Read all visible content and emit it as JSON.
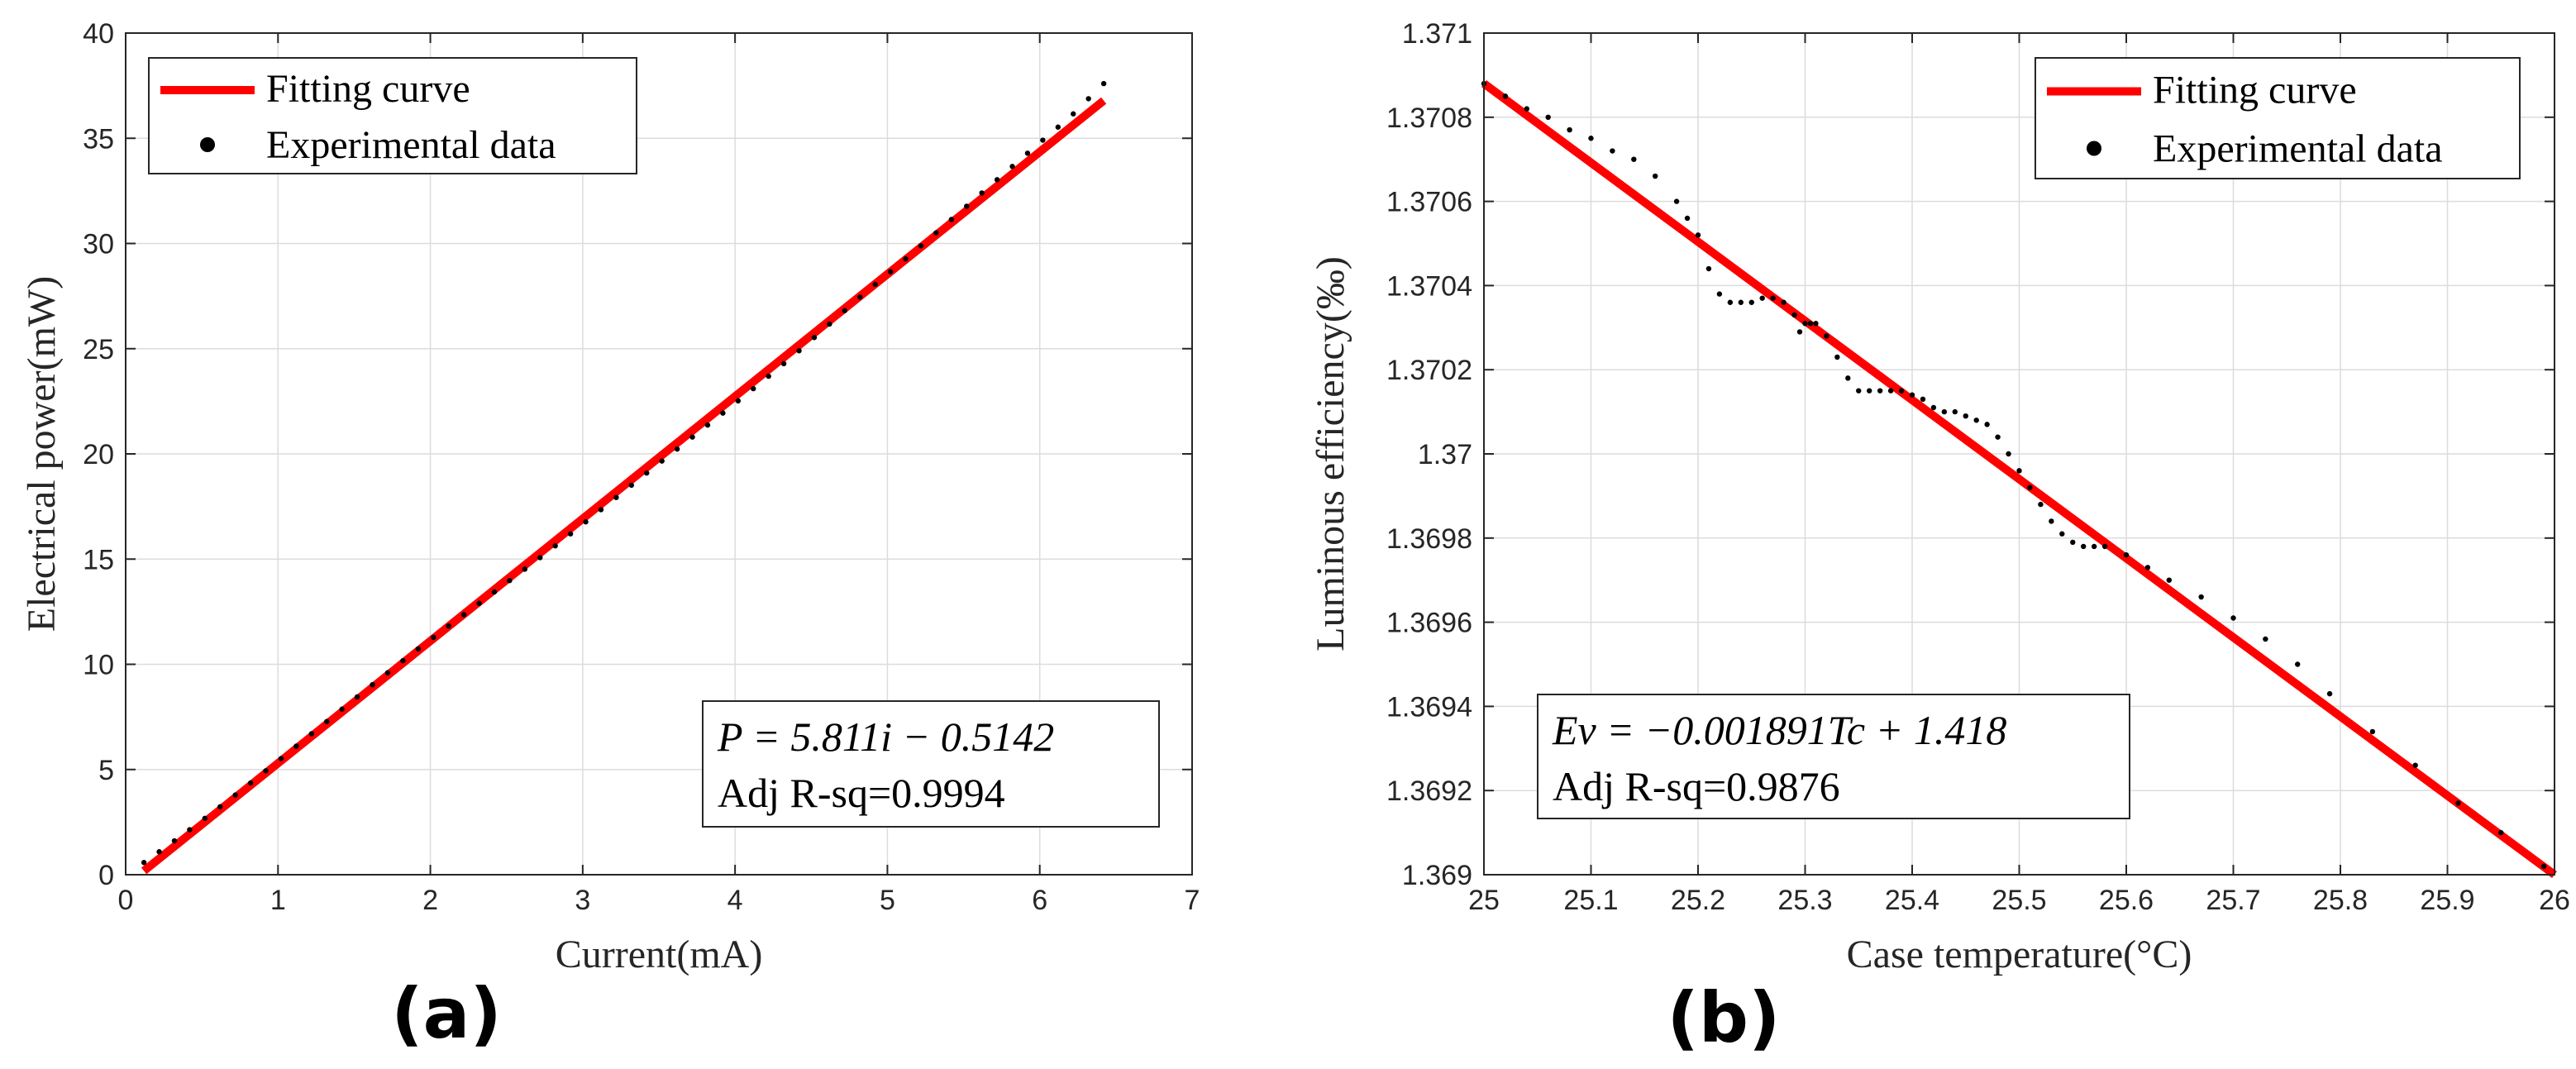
{
  "colors": {
    "fit": "#ff0000",
    "data": "#000000",
    "grid": "#dcdcdc",
    "axis": "#262626",
    "text": "#262626"
  },
  "chart_data": [
    {
      "panel": "(a)",
      "type": "scatter",
      "xlabel": "Current(mA)",
      "ylabel": "Electrical power(mW)",
      "xlim": [
        0,
        7
      ],
      "ylim": [
        0,
        40
      ],
      "xticks": [
        0,
        1,
        2,
        3,
        4,
        5,
        6,
        7
      ],
      "xtick_labels": [
        "0",
        "1",
        "2",
        "3",
        "4",
        "5",
        "6",
        "7"
      ],
      "yticks": [
        0,
        5,
        10,
        15,
        20,
        25,
        30,
        35,
        40
      ],
      "ytick_labels": [
        "0",
        "5",
        "10",
        "15",
        "20",
        "25",
        "30",
        "35",
        "40"
      ],
      "grid": true,
      "legend": {
        "position": "top-left",
        "entries": [
          "Fitting curve",
          "Experimental data"
        ]
      },
      "annotation": {
        "position": "bottom-right",
        "equation": "P = 5.811i − 0.5142",
        "r2": "Adj R-sq=0.9994"
      },
      "fit": {
        "slope": 5.811,
        "intercept": -0.5142,
        "x_range": [
          0.12,
          6.42
        ]
      },
      "series": [
        {
          "name": "Experimental data",
          "x": [
            0.12,
            0.22,
            0.32,
            0.42,
            0.52,
            0.62,
            0.72,
            0.82,
            0.92,
            1.02,
            1.12,
            1.22,
            1.32,
            1.42,
            1.52,
            1.62,
            1.72,
            1.82,
            1.92,
            2.02,
            2.12,
            2.22,
            2.32,
            2.42,
            2.52,
            2.62,
            2.72,
            2.82,
            2.92,
            3.02,
            3.12,
            3.22,
            3.32,
            3.42,
            3.52,
            3.62,
            3.72,
            3.82,
            3.92,
            4.02,
            4.12,
            4.22,
            4.32,
            4.42,
            4.52,
            4.62,
            4.72,
            4.82,
            4.92,
            5.02,
            5.12,
            5.22,
            5.32,
            5.42,
            5.52,
            5.62,
            5.72,
            5.82,
            5.92,
            6.02,
            6.12,
            6.22,
            6.32,
            6.42
          ],
          "y": [
            0.58,
            1.09,
            1.61,
            2.14,
            2.68,
            3.23,
            3.79,
            4.36,
            4.94,
            5.52,
            6.11,
            6.7,
            7.28,
            7.87,
            8.45,
            9.03,
            9.6,
            10.17,
            10.73,
            11.28,
            11.82,
            12.36,
            12.9,
            13.44,
            13.98,
            14.52,
            15.07,
            15.63,
            16.2,
            16.77,
            17.35,
            17.93,
            18.51,
            19.09,
            19.66,
            20.23,
            20.8,
            21.37,
            21.94,
            22.52,
            23.1,
            23.69,
            24.29,
            24.9,
            25.53,
            26.17,
            26.81,
            27.45,
            28.06,
            28.66,
            29.27,
            29.89,
            30.51,
            31.14,
            31.77,
            32.4,
            33.03,
            33.66,
            34.29,
            34.91,
            35.53,
            36.16,
            36.88,
            37.6
          ]
        }
      ]
    },
    {
      "panel": "(b)",
      "type": "scatter",
      "xlabel": "Case temperature(°C)",
      "ylabel": "Luminous efficiency(‰)",
      "xlim": [
        25,
        26
      ],
      "ylim": [
        1.369,
        1.371
      ],
      "xticks": [
        25,
        25.1,
        25.2,
        25.3,
        25.4,
        25.5,
        25.6,
        25.7,
        25.8,
        25.9,
        26
      ],
      "xtick_labels": [
        "25",
        "25.1",
        "25.2",
        "25.3",
        "25.4",
        "25.5",
        "25.6",
        "25.7",
        "25.8",
        "25.9",
        "26"
      ],
      "yticks": [
        1.369,
        1.3692,
        1.3694,
        1.3696,
        1.3698,
        1.37,
        1.3702,
        1.3704,
        1.3706,
        1.3708,
        1.371
      ],
      "ytick_labels": [
        "1.369",
        "1.3692",
        "1.3694",
        "1.3696",
        "1.3698",
        "1.37",
        "1.3702",
        "1.3704",
        "1.3706",
        "1.3708",
        "1.371"
      ],
      "grid": true,
      "legend": {
        "position": "top-right",
        "entries": [
          "Fitting curve",
          "Experimental data"
        ]
      },
      "annotation": {
        "position": "bottom-left",
        "equation": "Ev = −0.001891Tc + 1.418",
        "r2": "Adj R-sq=0.9876"
      },
      "fit": {
        "x": [
          25,
          26
        ],
        "y": [
          1.37088,
          1.369
        ]
      },
      "series": [
        {
          "name": "Experimental data",
          "x": [
            25.0,
            25.02,
            25.04,
            25.06,
            25.08,
            25.1,
            25.12,
            25.14,
            25.16,
            25.18,
            25.19,
            25.2,
            25.21,
            25.22,
            25.23,
            25.24,
            25.25,
            25.26,
            25.27,
            25.28,
            25.29,
            25.295,
            25.3,
            25.305,
            25.31,
            25.32,
            25.33,
            25.34,
            25.35,
            25.36,
            25.37,
            25.38,
            25.39,
            25.4,
            25.41,
            25.42,
            25.43,
            25.44,
            25.45,
            25.46,
            25.47,
            25.48,
            25.49,
            25.5,
            25.51,
            25.52,
            25.53,
            25.54,
            25.55,
            25.56,
            25.57,
            25.58,
            25.6,
            25.62,
            25.64,
            25.67,
            25.7,
            25.73,
            25.76,
            25.79,
            25.83,
            25.87,
            25.91,
            25.95,
            25.99
          ],
          "y": [
            1.37088,
            1.37085,
            1.37082,
            1.3708,
            1.37077,
            1.37075,
            1.37072,
            1.3707,
            1.37066,
            1.3706,
            1.37056,
            1.37052,
            1.37044,
            1.37038,
            1.37036,
            1.37036,
            1.37036,
            1.37037,
            1.37037,
            1.37036,
            1.37033,
            1.37029,
            1.37031,
            1.37031,
            1.37031,
            1.37028,
            1.37023,
            1.37018,
            1.37015,
            1.37015,
            1.37015,
            1.37015,
            1.37015,
            1.37014,
            1.37013,
            1.37011,
            1.3701,
            1.3701,
            1.37009,
            1.37008,
            1.37007,
            1.37004,
            1.37,
            1.36996,
            1.36992,
            1.36988,
            1.36984,
            1.36981,
            1.36979,
            1.36978,
            1.36978,
            1.36978,
            1.36976,
            1.36973,
            1.3697,
            1.36966,
            1.36961,
            1.36956,
            1.3695,
            1.36943,
            1.36934,
            1.36926,
            1.36917,
            1.3691,
            1.36902
          ]
        }
      ]
    }
  ]
}
